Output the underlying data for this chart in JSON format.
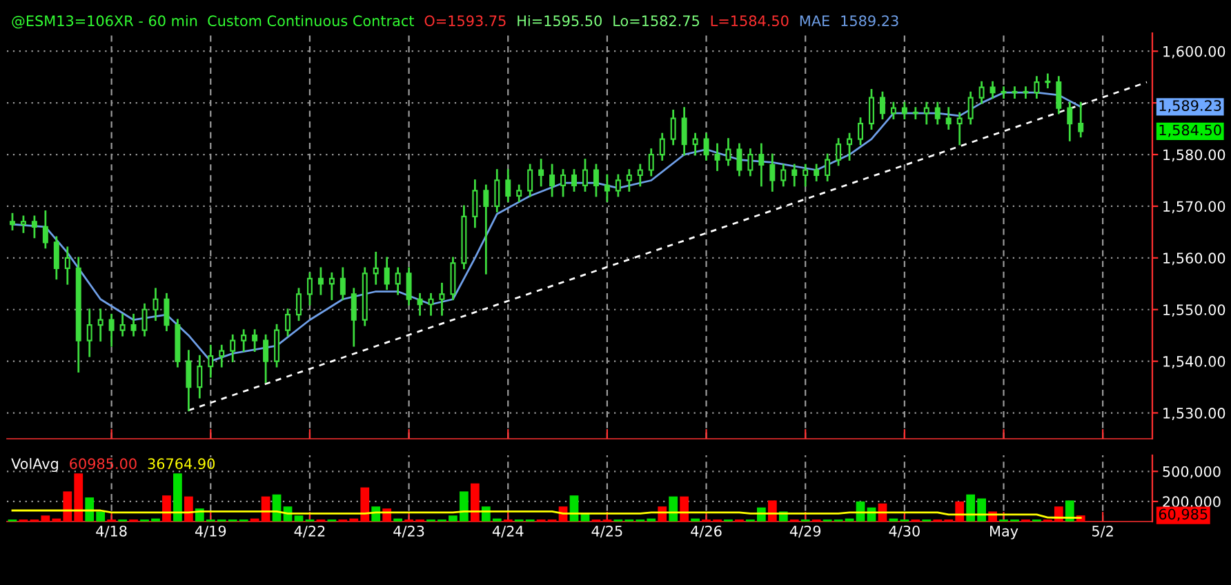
{
  "chart_data": [
    {
      "type": "candlestick",
      "title": "@ESM13=106XR - 60 min  Custom Continuous Contract",
      "color": "#3ddc3d",
      "categories": [
        null,
        null,
        null,
        null,
        null,
        null,
        null,
        null,
        null,
        null,
        null,
        null,
        null,
        null,
        null,
        null,
        null,
        null,
        null,
        null,
        null,
        null,
        null,
        null,
        null,
        null,
        null,
        null,
        null,
        null,
        null,
        null,
        null,
        null,
        null,
        null,
        null,
        null,
        null,
        null,
        null,
        null,
        null,
        null,
        null,
        null,
        null,
        null,
        null,
        null,
        null,
        null,
        null,
        null,
        null,
        null,
        null,
        null,
        null,
        null,
        null,
        null,
        null,
        null,
        null,
        null,
        null,
        null,
        null,
        null,
        null,
        null,
        null,
        null,
        null,
        null,
        null,
        null,
        null,
        null,
        null,
        null,
        null,
        null,
        null,
        null,
        null,
        null,
        null,
        null,
        null,
        null,
        null,
        null,
        null,
        null,
        null,
        null,
        null,
        null,
        null,
        null,
        null,
        null
      ],
      "ohlc": [
        [
          1567,
          1568.5,
          1565.5,
          1566.5
        ],
        [
          1566.5,
          1568,
          1565,
          1567
        ],
        [
          1567,
          1568,
          1564,
          1566
        ],
        [
          1566,
          1569,
          1562,
          1563
        ],
        [
          1563,
          1564,
          1556,
          1558
        ],
        [
          1558,
          1562,
          1555,
          1560
        ],
        [
          1558,
          1560,
          1538,
          1544
        ],
        [
          1544,
          1550,
          1541,
          1547
        ],
        [
          1547,
          1550,
          1544,
          1548
        ],
        [
          1548,
          1549,
          1543,
          1546
        ],
        [
          1546,
          1549,
          1545,
          1547
        ],
        [
          1547,
          1549,
          1545,
          1546
        ],
        [
          1546,
          1551,
          1545,
          1550
        ],
        [
          1550,
          1554,
          1548,
          1552
        ],
        [
          1552,
          1553,
          1546,
          1547
        ],
        [
          1547,
          1548,
          1539,
          1540
        ],
        [
          1540,
          1542,
          1530.5,
          1535
        ],
        [
          1535,
          1541,
          1533,
          1539
        ],
        [
          1539,
          1543,
          1537,
          1541
        ],
        [
          1541,
          1543,
          1539,
          1542
        ],
        [
          1542,
          1545,
          1540,
          1544
        ],
        [
          1544,
          1546,
          1542,
          1545
        ],
        [
          1545,
          1546,
          1542,
          1544
        ],
        [
          1544,
          1545,
          1536,
          1540
        ],
        [
          1540,
          1547,
          1539,
          1546
        ],
        [
          1546,
          1550,
          1545,
          1549
        ],
        [
          1549,
          1554,
          1548,
          1553
        ],
        [
          1553,
          1557,
          1551,
          1556
        ],
        [
          1556,
          1558,
          1553,
          1555
        ],
        [
          1555,
          1557,
          1552,
          1556
        ],
        [
          1556,
          1558,
          1552,
          1553
        ],
        [
          1553,
          1554,
          1543,
          1548
        ],
        [
          1548,
          1558,
          1547,
          1557
        ],
        [
          1557,
          1561,
          1555,
          1558
        ],
        [
          1558,
          1560,
          1554,
          1555
        ],
        [
          1555,
          1558,
          1553,
          1557
        ],
        [
          1557,
          1558,
          1551,
          1552
        ],
        [
          1552,
          1553,
          1549,
          1551
        ],
        [
          1551,
          1553,
          1549,
          1552
        ],
        [
          1552,
          1555,
          1549,
          1553
        ],
        [
          1553,
          1560,
          1552,
          1559
        ],
        [
          1559,
          1570,
          1558,
          1568
        ],
        [
          1568,
          1575,
          1566,
          1573
        ],
        [
          1573,
          1574,
          1557,
          1570
        ],
        [
          1570,
          1577,
          1569,
          1575
        ],
        [
          1575,
          1577,
          1571,
          1572
        ],
        [
          1572,
          1574,
          1571,
          1573
        ],
        [
          1573,
          1578,
          1572,
          1577
        ],
        [
          1577,
          1579,
          1574,
          1576
        ],
        [
          1576,
          1578,
          1572,
          1574
        ],
        [
          1574,
          1577,
          1572,
          1576
        ],
        [
          1576,
          1577,
          1573,
          1574
        ],
        [
          1574,
          1579,
          1573,
          1577
        ],
        [
          1577,
          1578,
          1572,
          1574
        ],
        [
          1574,
          1576,
          1571,
          1573
        ],
        [
          1573,
          1576,
          1572,
          1575
        ],
        [
          1575,
          1577,
          1573,
          1576
        ],
        [
          1576,
          1578,
          1574,
          1577
        ],
        [
          1577,
          1581,
          1576,
          1580
        ],
        [
          1580,
          1584,
          1579,
          1583
        ],
        [
          1583,
          1588.5,
          1582,
          1587
        ],
        [
          1587,
          1589,
          1580,
          1582
        ],
        [
          1582,
          1584,
          1580,
          1583
        ],
        [
          1583,
          1584,
          1579,
          1580
        ],
        [
          1580,
          1582,
          1577,
          1579
        ],
        [
          1579,
          1583,
          1578,
          1581
        ],
        [
          1581,
          1582,
          1576,
          1577
        ],
        [
          1577,
          1581,
          1576,
          1580
        ],
        [
          1580,
          1582,
          1574,
          1578
        ],
        [
          1578,
          1580,
          1573,
          1575
        ],
        [
          1575,
          1578,
          1574,
          1577
        ],
        [
          1577,
          1578,
          1574,
          1576
        ],
        [
          1576,
          1578,
          1574,
          1577
        ],
        [
          1577,
          1578,
          1575,
          1576
        ],
        [
          1576,
          1580,
          1575,
          1579
        ],
        [
          1579,
          1583,
          1578,
          1582
        ],
        [
          1582,
          1584,
          1579,
          1583
        ],
        [
          1583,
          1587,
          1582,
          1586
        ],
        [
          1586,
          1592.5,
          1585,
          1591
        ],
        [
          1591,
          1592,
          1587,
          1588
        ],
        [
          1588,
          1590,
          1587,
          1589
        ],
        [
          1589,
          1590,
          1587,
          1588
        ],
        [
          1588,
          1589,
          1587,
          1588
        ],
        [
          1588,
          1590,
          1586,
          1589
        ],
        [
          1589,
          1590,
          1586,
          1587
        ],
        [
          1587,
          1589,
          1585,
          1586
        ],
        [
          1586,
          1588,
          1582,
          1587
        ],
        [
          1587,
          1592,
          1586,
          1591
        ],
        [
          1591,
          1594,
          1590,
          1593
        ],
        [
          1593,
          1594,
          1591,
          1592
        ],
        [
          1592,
          1593,
          1591,
          1592
        ],
        [
          1592,
          1593,
          1591,
          1592
        ],
        [
          1592,
          1593,
          1591,
          1592
        ],
        [
          1592,
          1595,
          1591,
          1594
        ],
        [
          1594,
          1595.5,
          1593,
          1594
        ],
        [
          1594,
          1595,
          1588,
          1589
        ],
        [
          1589,
          1590,
          1582.75,
          1586
        ],
        [
          1586,
          1590,
          1583.5,
          1584.5
        ],
        null,
        null,
        null,
        null,
        null,
        null
      ],
      "series": [
        {
          "name": "MAE",
          "type": "line",
          "color": "#6f9fe8",
          "values": [
            1566.5,
            null,
            null,
            1566,
            null,
            1561,
            null,
            null,
            1552,
            null,
            null,
            1548,
            null,
            null,
            1549,
            null,
            1545,
            null,
            1540,
            null,
            1541.5,
            null,
            null,
            null,
            1543,
            null,
            null,
            1548,
            null,
            null,
            1552,
            null,
            null,
            1553.5,
            null,
            1553.5,
            null,
            null,
            1551,
            null,
            1552,
            null,
            1560,
            null,
            1568.5,
            null,
            null,
            1572,
            null,
            null,
            1574.5,
            null,
            null,
            1574.5,
            null,
            1573.5,
            null,
            null,
            1575,
            null,
            null,
            1580,
            null,
            1581,
            null,
            null,
            1579,
            null,
            null,
            1578.5,
            null,
            null,
            null,
            1577,
            null,
            null,
            1580,
            null,
            1583,
            null,
            1588,
            null,
            null,
            null,
            1588,
            null,
            1587.5,
            null,
            1590,
            null,
            1592,
            null,
            null,
            1592,
            null,
            1591.5,
            null,
            1589.23,
            null,
            null,
            null,
            null,
            null,
            null
          ]
        },
        {
          "type": "line",
          "color": "#ffffff",
          "line_style": "dashed",
          "values": [
            null,
            null,
            null,
            null,
            null,
            null,
            null,
            null,
            null,
            null,
            null,
            null,
            null,
            null,
            null,
            null,
            1530.5,
            null,
            null,
            null,
            null,
            null,
            null,
            null,
            null,
            null,
            null,
            null,
            null,
            null,
            null,
            null,
            null,
            null,
            null,
            null,
            null,
            null,
            null,
            null,
            null,
            null,
            null,
            null,
            null,
            null,
            null,
            null,
            null,
            null,
            null,
            null,
            null,
            null,
            null,
            null,
            null,
            null,
            null,
            null,
            null,
            null,
            null,
            null,
            null,
            null,
            null,
            null,
            null,
            null,
            null,
            null,
            null,
            null,
            null,
            null,
            null,
            null,
            null,
            null,
            null,
            null,
            null,
            null,
            null,
            null,
            null,
            null,
            null,
            null,
            null,
            null,
            null,
            null,
            null,
            null,
            null,
            null,
            null,
            null,
            null,
            null,
            null,
            1594
          ]
        }
      ],
      "ylim": [
        1525,
        1603.5
      ],
      "yticks": [
        {
          "value": 1530,
          "label": "1,530.00"
        },
        {
          "value": 1540,
          "label": "1,540.00"
        },
        {
          "value": 1550,
          "label": "1,550.00"
        },
        {
          "value": 1560,
          "label": "1,560.00"
        },
        {
          "value": 1570,
          "label": "1,570.00"
        },
        {
          "value": 1580,
          "label": "1,580.00"
        },
        {
          "value": 1590,
          "label": null
        },
        {
          "value": 1600,
          "label": "1,600.00"
        }
      ],
      "grid": true,
      "annotations": [
        "O=1593.75",
        "Hi=1595.50",
        "Lo=1582.75",
        "L=1584.50",
        "1589.23",
        "1,589.23",
        "1,584.50"
      ]
    },
    {
      "type": "bar",
      "categories": [
        null,
        null,
        null,
        null,
        null,
        null,
        null,
        null,
        null,
        "4/18",
        null,
        null,
        null,
        null,
        null,
        null,
        null,
        null,
        "4/19",
        null,
        null,
        null,
        null,
        null,
        null,
        null,
        null,
        "4/22",
        null,
        null,
        null,
        null,
        null,
        null,
        null,
        null,
        "4/23",
        null,
        null,
        null,
        null,
        null,
        null,
        null,
        null,
        "4/24",
        null,
        null,
        null,
        null,
        null,
        null,
        null,
        null,
        "4/25",
        null,
        null,
        null,
        null,
        null,
        null,
        null,
        null,
        "4/26",
        null,
        null,
        null,
        null,
        null,
        null,
        null,
        null,
        "4/29",
        null,
        null,
        null,
        null,
        null,
        null,
        null,
        null,
        "4/30",
        null,
        null,
        null,
        null,
        null,
        null,
        null,
        null,
        "May",
        null,
        null,
        null,
        null,
        null,
        null,
        null,
        null,
        "5/2",
        null,
        null,
        null,
        null
      ],
      "series": [
        {
          "type": "bar",
          "values": [
            20000,
            20000,
            20000,
            60000,
            30000,
            300000,
            480000,
            240000,
            100000,
            20000,
            20000,
            20000,
            20000,
            30000,
            260000,
            480000,
            250000,
            130000,
            20000,
            20000,
            20000,
            20000,
            30000,
            250000,
            270000,
            150000,
            60000,
            20000,
            20000,
            20000,
            20000,
            30000,
            340000,
            150000,
            130000,
            30000,
            20000,
            20000,
            20000,
            20000,
            60000,
            300000,
            380000,
            150000,
            30000,
            20000,
            20000,
            20000,
            20000,
            20000,
            150000,
            260000,
            80000,
            20000,
            20000,
            20000,
            20000,
            20000,
            30000,
            150000,
            250000,
            250000,
            30000,
            20000,
            20000,
            20000,
            20000,
            20000,
            140000,
            210000,
            100000,
            20000,
            20000,
            20000,
            20000,
            20000,
            30000,
            200000,
            140000,
            180000,
            30000,
            20000,
            20000,
            20000,
            20000,
            20000,
            200000,
            270000,
            230000,
            100000,
            20000,
            20000,
            20000,
            20000,
            20000,
            150000,
            210000,
            60985,
            null,
            null,
            null,
            null,
            null,
            null
          ],
          "colors": [
            "#00e000",
            "#ff0000",
            "#ff0000",
            "#ff0000",
            "#ff0000",
            "#ff0000",
            "#ff0000",
            "#00e000",
            "#00e000",
            "#ff0000",
            "#00e000",
            "#ff0000",
            "#00e000",
            "#00e000",
            "#ff0000",
            "#00e000",
            "#ff0000",
            "#00e000",
            "#00e000",
            "#00e000",
            "#00e000",
            "#00e000",
            "#ff0000",
            "#ff0000",
            "#00e000",
            "#00e000",
            "#00e000",
            "#00e000",
            "#ff0000",
            "#00e000",
            "#ff0000",
            "#ff0000",
            "#ff0000",
            "#00e000",
            "#ff0000",
            "#00e000",
            "#ff0000",
            "#ff0000",
            "#00e000",
            "#00e000",
            "#00e000",
            "#00e000",
            "#ff0000",
            "#00e000",
            "#00e000",
            "#ff0000",
            "#00e000",
            "#00e000",
            "#ff0000",
            "#ff0000",
            "#ff0000",
            "#00e000",
            "#00e000",
            "#ff0000",
            "#ff0000",
            "#00e000",
            "#00e000",
            "#00e000",
            "#00e000",
            "#ff0000",
            "#00e000",
            "#ff0000",
            "#00e000",
            "#ff0000",
            "#ff0000",
            "#00e000",
            "#ff0000",
            "#00e000",
            "#00e000",
            "#ff0000",
            "#00e000",
            "#ff0000",
            "#00e000",
            "#ff0000",
            "#00e000",
            "#00e000",
            "#00e000",
            "#00e000",
            "#00e000",
            "#ff0000",
            "#00e000",
            "#00e000",
            "#ff0000",
            "#00e000",
            "#ff0000",
            "#ff0000",
            "#ff0000",
            "#00e000",
            "#00e000",
            "#ff0000",
            "#00e000",
            "#00e000",
            "#ff0000",
            "#00e000",
            "#ff0000",
            "#ff0000",
            "#00e000",
            "#ff0000",
            null,
            null,
            null,
            null,
            null,
            null
          ]
        },
        {
          "type": "line",
          "color": "#ffff00",
          "values": [
            110000,
            null,
            null,
            null,
            null,
            null,
            null,
            null,
            110000,
            90000,
            null,
            null,
            null,
            null,
            null,
            null,
            90000,
            100000,
            null,
            null,
            null,
            null,
            null,
            null,
            100000,
            80000,
            null,
            null,
            null,
            null,
            null,
            null,
            80000,
            90000,
            null,
            null,
            null,
            null,
            null,
            null,
            90000,
            100000,
            null,
            null,
            null,
            null,
            null,
            null,
            null,
            100000,
            80000,
            null,
            null,
            null,
            null,
            null,
            null,
            80000,
            90000,
            null,
            null,
            null,
            null,
            null,
            null,
            null,
            90000,
            80000,
            null,
            null,
            null,
            null,
            null,
            null,
            null,
            80000,
            90000,
            null,
            null,
            null,
            null,
            null,
            null,
            null,
            90000,
            70000,
            null,
            null,
            null,
            null,
            null,
            null,
            null,
            70000,
            40000,
            null,
            null,
            36764.9,
            null,
            null,
            null,
            null,
            null,
            null
          ]
        }
      ],
      "ylim": [
        0,
        660000
      ],
      "yticks": [
        {
          "value": 200000,
          "label": "200,000"
        },
        {
          "value": 500000,
          "label": "500,000"
        }
      ],
      "grid": true,
      "annotations": [
        "VolAvg",
        "60985.00",
        "36764.90",
        {
          "text": "60,985",
          "y": 60985
        }
      ]
    }
  ]
}
